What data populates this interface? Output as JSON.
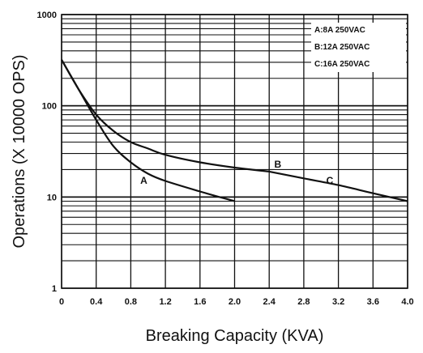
{
  "chart_data": {
    "type": "line",
    "title": "",
    "xlabel": "Breaking Capacity (KVA)",
    "ylabel": "Operations (X 10000 OPS)",
    "xlim": [
      0,
      4.0
    ],
    "ylim": [
      1,
      1000
    ],
    "y_scale": "log",
    "grid": true,
    "x_ticks": [
      "0",
      "0.4",
      "0.8",
      "1.2",
      "1.6",
      "2.0",
      "2.4",
      "2.8",
      "3.2",
      "3.6",
      "4.0"
    ],
    "y_ticks": [
      "1",
      "10",
      "100",
      "1000"
    ],
    "legend_position": "top-right",
    "legend": [
      "A:8A 250VAC",
      "B:12A 250VAC",
      "C:16A 250VAC"
    ],
    "series": [
      {
        "name": "A",
        "label_point": {
          "x": 0.95,
          "y": 14
        },
        "points": [
          [
            0,
            320
          ],
          [
            0.2,
            150
          ],
          [
            0.4,
            70
          ],
          [
            0.6,
            36
          ],
          [
            0.8,
            24
          ],
          [
            1.0,
            18
          ],
          [
            1.2,
            15
          ],
          [
            1.6,
            11.5
          ],
          [
            2.0,
            9
          ]
        ]
      },
      {
        "name": "B",
        "label_point": {
          "x": 2.5,
          "y": 21
        },
        "points": [
          [
            0,
            320
          ],
          [
            0.2,
            150
          ],
          [
            0.4,
            80
          ],
          [
            0.6,
            53
          ],
          [
            0.8,
            40
          ],
          [
            1.0,
            34
          ],
          [
            1.2,
            29
          ],
          [
            1.6,
            24
          ],
          [
            2.0,
            21
          ],
          [
            2.4,
            19
          ]
        ]
      },
      {
        "name": "C",
        "label_point": {
          "x": 3.1,
          "y": 14
        },
        "points": [
          [
            2.4,
            19
          ],
          [
            2.8,
            16
          ],
          [
            3.2,
            13.5
          ],
          [
            3.6,
            11
          ],
          [
            4.0,
            9
          ]
        ]
      }
    ]
  }
}
